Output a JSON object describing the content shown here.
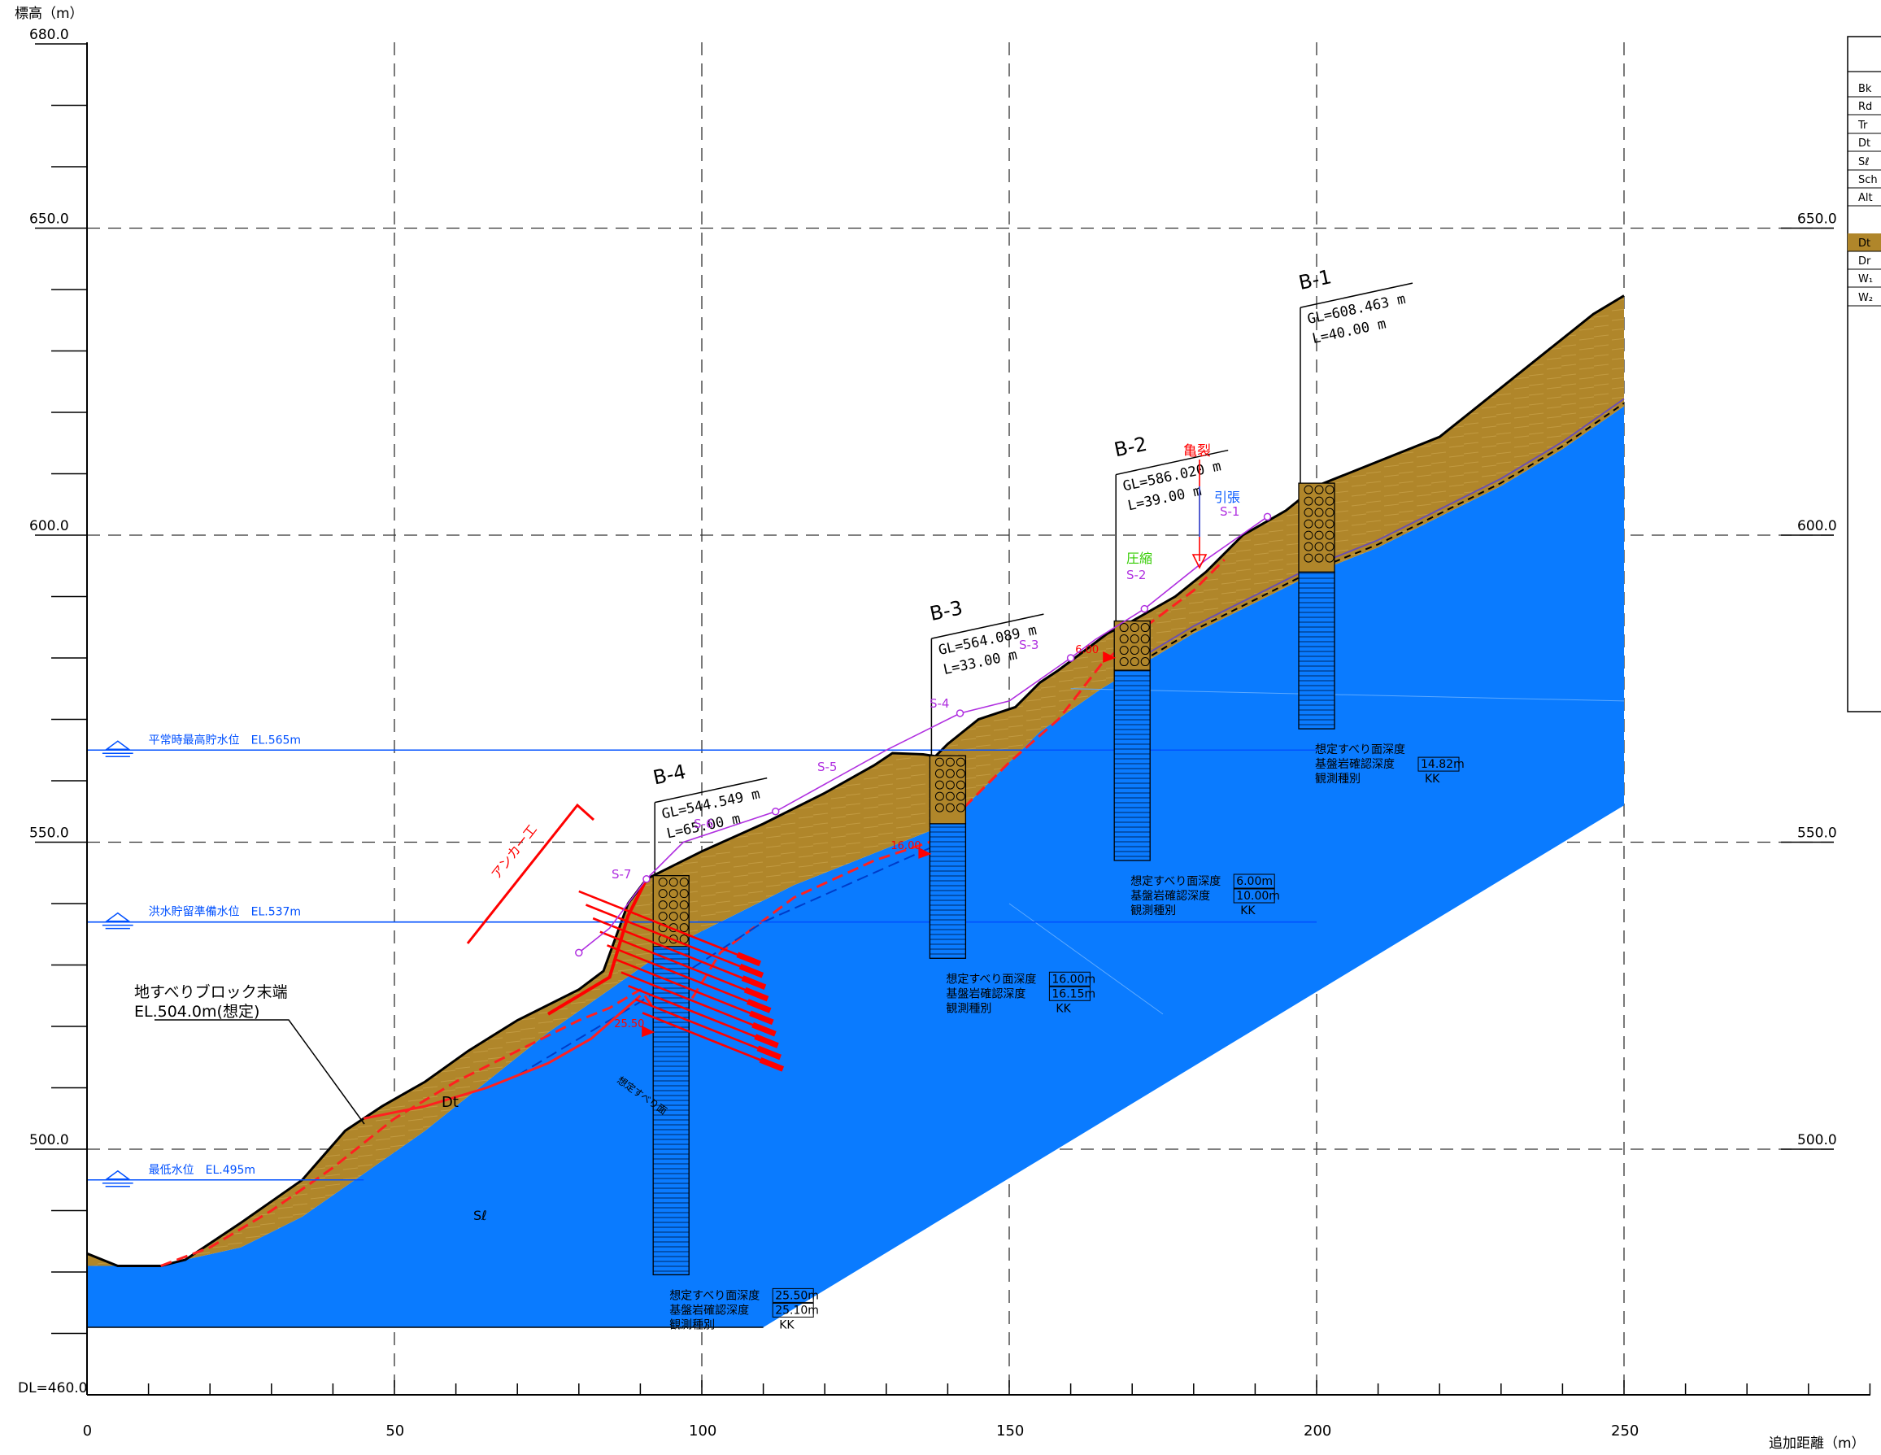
{
  "axes": {
    "y_title": "標高（m）",
    "x_title": "追加距離（m）",
    "datum": "DL=460.0",
    "y_ticks_left": [
      {
        "v": 680,
        "label": "680.0"
      },
      {
        "v": 650,
        "label": "650.0"
      },
      {
        "v": 600,
        "label": "600.0"
      },
      {
        "v": 550,
        "label": "550.0"
      },
      {
        "v": 500,
        "label": "500.0"
      }
    ],
    "y_ticks_right": [
      {
        "v": 650,
        "label": "650.0"
      },
      {
        "v": 600,
        "label": "600.0"
      },
      {
        "v": 550,
        "label": "550.0"
      },
      {
        "v": 500,
        "label": "500.0"
      }
    ],
    "x_ticks": [
      {
        "v": 0,
        "label": "0"
      },
      {
        "v": 50,
        "label": "50"
      },
      {
        "v": 100,
        "label": "100"
      },
      {
        "v": 150,
        "label": "150"
      },
      {
        "v": 200,
        "label": "200"
      },
      {
        "v": 250,
        "label": "250"
      }
    ],
    "x_range": [
      0,
      290
    ],
    "y_range": [
      460,
      680
    ]
  },
  "legend": {
    "codes": [
      "Bk",
      "Rd",
      "Tr",
      "Dt",
      "Sℓ",
      "Sch",
      "Alt",
      "Dt",
      "Dr",
      "W₁",
      "W₂"
    ],
    "highlighted_index": 7,
    "highlight_color": "#B0862A"
  },
  "colors": {
    "deposit": "#B0862A",
    "bedrock": "#0A7BFF",
    "anchor": "#FF0000",
    "slip": "#FF2020",
    "water": "#0050FF",
    "extensometer": "#B030E0",
    "compress": "#33CC00",
    "frame": "#000000"
  },
  "water_levels": [
    {
      "elev": 565,
      "label": "平常時最高貯水位　EL.565m"
    },
    {
      "elev": 537,
      "label": "洪水貯留準備水位　EL.537m"
    },
    {
      "elev": 495,
      "label": "最低水位　EL.495m"
    }
  ],
  "boreholes": [
    {
      "name": "B-1",
      "x": 200,
      "gl": 608.463,
      "length": 40.0,
      "gl_text": "GL=608.463 m",
      "l_text": "L=40.00 m",
      "info": {
        "slip": "想定すべり面深度",
        "rock": "基盤岩確認深度",
        "rock_val": "14.82m",
        "obs": "観測種別",
        "obs_val": "KK"
      }
    },
    {
      "name": "B-2",
      "x": 170,
      "gl": 586.02,
      "length": 39.0,
      "gl_text": "GL=586.020 m",
      "l_text": "L=39.00 m",
      "slip_marker": "6.00",
      "info": {
        "slip": "想定すべり面深度",
        "slip_val": "6.00m",
        "rock": "基盤岩確認深度",
        "rock_val": "10.00m",
        "obs": "観測種別",
        "obs_val": "KK"
      }
    },
    {
      "name": "B-3",
      "x": 140,
      "gl": 564.089,
      "length": 33.0,
      "gl_text": "GL=564.089 m",
      "l_text": "L=33.00 m",
      "slip_marker": "16.00",
      "info": {
        "slip": "想定すべり面深度",
        "slip_val": "16.00m",
        "rock": "基盤岩確認深度",
        "rock_val": "16.15m",
        "obs": "観測種別",
        "obs_val": "KK"
      }
    },
    {
      "name": "B-4",
      "x": 95,
      "gl": 544.549,
      "length": 65.0,
      "gl_text": "GL=544.549 m",
      "l_text": "L=65.00 m",
      "slip_marker": "25.50",
      "info": {
        "slip": "想定すべり面深度",
        "slip_val": "25.50m",
        "rock": "基盤岩確認深度",
        "rock_val": "25.10m",
        "obs": "観測種別",
        "obs_val": "KK"
      }
    }
  ],
  "extensometers": [
    "S-1",
    "S-2",
    "S-3",
    "S-4",
    "S-5",
    "S-6",
    "S-7"
  ],
  "annotations": {
    "crack": "亀裂",
    "tension": "引張",
    "compression": "圧縮",
    "anchor": "アンカー工",
    "block_end_line1": "地すべりブロック末端",
    "block_end_line2": "EL.504.0m(想定)",
    "unit_dt": "Dt",
    "unit_sl": "Sℓ",
    "slip_label": "想定すべり面"
  },
  "profiles": {
    "ground": [
      [
        0,
        483
      ],
      [
        5,
        481
      ],
      [
        12,
        481
      ],
      [
        16,
        482
      ],
      [
        25,
        488
      ],
      [
        35,
        495
      ],
      [
        42,
        503
      ],
      [
        48,
        507
      ],
      [
        55,
        511
      ],
      [
        62,
        516
      ],
      [
        70,
        521
      ],
      [
        80,
        526
      ],
      [
        84,
        529
      ],
      [
        88,
        540
      ],
      [
        91,
        544
      ],
      [
        95,
        546
      ],
      [
        100,
        548.5
      ],
      [
        110,
        553
      ],
      [
        120,
        558
      ],
      [
        128,
        562.5
      ],
      [
        131,
        564.5
      ],
      [
        136,
        564.3
      ],
      [
        138,
        564
      ],
      [
        140,
        566
      ],
      [
        145,
        570
      ],
      [
        151,
        572
      ],
      [
        155,
        576
      ],
      [
        158,
        578
      ],
      [
        162,
        581
      ],
      [
        166,
        584
      ],
      [
        170,
        586
      ],
      [
        177,
        590
      ],
      [
        182,
        594
      ],
      [
        188,
        600
      ],
      [
        195,
        604
      ],
      [
        200,
        608
      ],
      [
        210,
        612
      ],
      [
        220,
        616
      ],
      [
        230,
        624
      ],
      [
        240,
        632
      ],
      [
        245,
        636
      ],
      [
        250,
        639
      ]
    ],
    "rock": [
      [
        0,
        481
      ],
      [
        12,
        481
      ],
      [
        16,
        482
      ],
      [
        25,
        484
      ],
      [
        35,
        489
      ],
      [
        45,
        496
      ],
      [
        55,
        503
      ],
      [
        65,
        511
      ],
      [
        75,
        519
      ],
      [
        85,
        526
      ],
      [
        95,
        533
      ],
      [
        105,
        538
      ],
      [
        115,
        543
      ],
      [
        125,
        547
      ],
      [
        135,
        551
      ],
      [
        140,
        553
      ],
      [
        145,
        558
      ],
      [
        155,
        568
      ],
      [
        165,
        575
      ],
      [
        170,
        578
      ],
      [
        180,
        584
      ],
      [
        190,
        589
      ],
      [
        200,
        594
      ],
      [
        210,
        598
      ],
      [
        220,
        603
      ],
      [
        230,
        608
      ],
      [
        240,
        614
      ],
      [
        250,
        621
      ]
    ],
    "slip": [
      [
        12,
        481
      ],
      [
        20,
        484
      ],
      [
        30,
        490
      ],
      [
        40,
        497
      ],
      [
        50,
        505
      ],
      [
        60,
        511
      ],
      [
        70,
        516
      ],
      [
        80,
        521
      ],
      [
        85,
        523
      ],
      [
        90,
        526
      ],
      [
        95,
        519
      ],
      [
        103,
        532
      ],
      [
        115,
        541
      ],
      [
        128,
        547
      ],
      [
        137,
        550
      ],
      [
        143,
        556
      ],
      [
        150,
        563
      ],
      [
        158,
        570
      ],
      [
        165,
        579
      ],
      [
        172,
        585
      ],
      [
        180,
        591
      ],
      [
        185,
        596
      ]
    ],
    "bedrock_base": [
      [
        0,
        471
      ],
      [
        250,
        471
      ]
    ],
    "extensometer_line": [
      [
        80,
        532
      ],
      [
        85,
        536
      ],
      [
        91,
        544
      ],
      [
        97,
        550
      ],
      [
        112,
        555
      ],
      [
        130,
        565
      ],
      [
        142,
        571
      ],
      [
        150,
        573
      ],
      [
        160,
        580
      ],
      [
        164,
        583
      ],
      [
        172,
        588
      ],
      [
        182,
        596
      ],
      [
        192,
        603
      ]
    ]
  }
}
